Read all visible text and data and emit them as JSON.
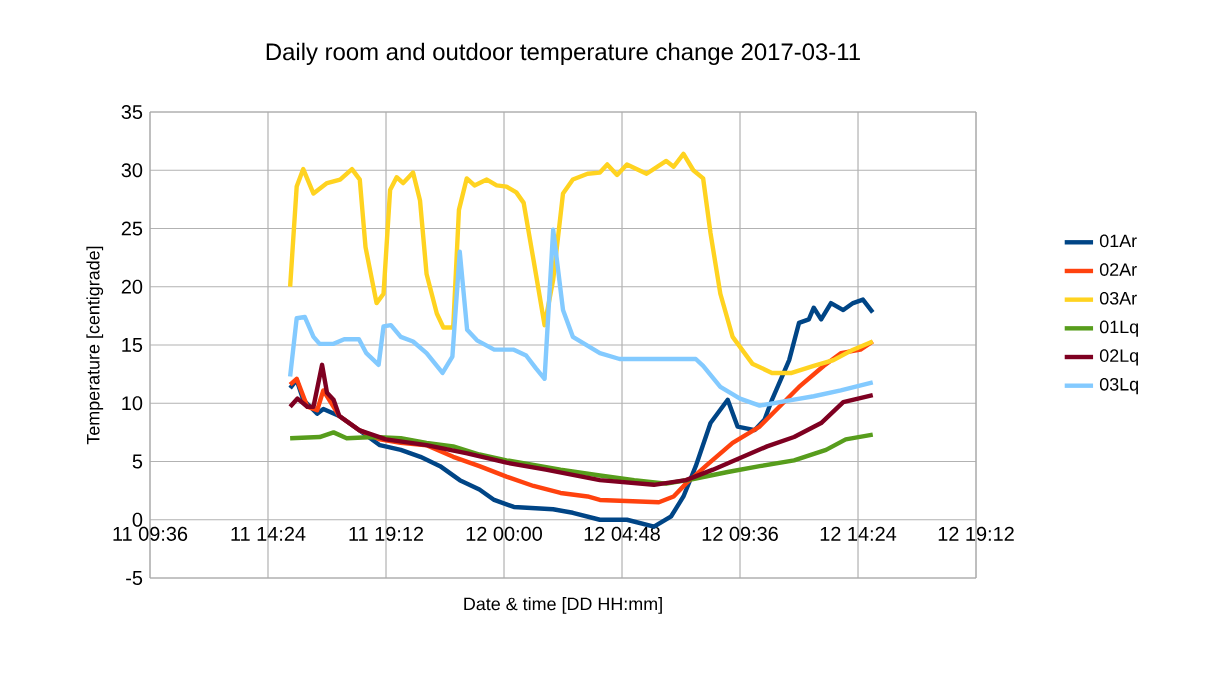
{
  "chart_data": {
    "type": "line",
    "title": "Daily room and outdoor temperature change 2017-03-11",
    "xlabel": "Date & time [DD HH:mm]",
    "ylabel": "Temperature [centigrade]",
    "xlim": [
      "2017-03-11T09:36",
      "2017-03-12T19:12"
    ],
    "xticks": [
      {
        "value": "2017-03-11T09:36",
        "label": "11 09:36"
      },
      {
        "value": "2017-03-11T14:24",
        "label": "11 14:24"
      },
      {
        "value": "2017-03-11T19:12",
        "label": "11 19:12"
      },
      {
        "value": "2017-03-12T00:00",
        "label": "12 00:00"
      },
      {
        "value": "2017-03-12T04:48",
        "label": "12 04:48"
      },
      {
        "value": "2017-03-12T09:36",
        "label": "12 09:36"
      },
      {
        "value": "2017-03-12T14:24",
        "label": "12 14:24"
      },
      {
        "value": "2017-03-12T19:12",
        "label": "12 19:12"
      }
    ],
    "ylim": [
      -5,
      35
    ],
    "yticks": [
      -5,
      0,
      5,
      10,
      15,
      20,
      25,
      30,
      35
    ],
    "grid": true,
    "legend": "right",
    "marker": "none",
    "line_style": "solid",
    "series": [
      {
        "name": "01Ar",
        "color": "#004586",
        "x": [
          "2017-03-11T15:18",
          "2017-03-11T15:34",
          "2017-03-11T15:50",
          "2017-03-11T16:24",
          "2017-03-11T16:39",
          "2017-03-11T17:18",
          "2017-03-11T18:06",
          "2017-03-11T18:57",
          "2017-03-11T19:48",
          "2017-03-11T20:36",
          "2017-03-11T21:24",
          "2017-03-11T22:12",
          "2017-03-11T23:00",
          "2017-03-11T23:36",
          "2017-03-12T00:24",
          "2017-03-12T01:12",
          "2017-03-12T02:00",
          "2017-03-12T02:48",
          "2017-03-12T03:54",
          "2017-03-12T05:00",
          "2017-03-12T06:06",
          "2017-03-12T06:48",
          "2017-03-12T07:18",
          "2017-03-12T07:48",
          "2017-03-12T08:24",
          "2017-03-12T09:06",
          "2017-03-12T09:30",
          "2017-03-12T10:12",
          "2017-03-12T10:36",
          "2017-03-12T10:54",
          "2017-03-12T11:36",
          "2017-03-12T12:00",
          "2017-03-12T12:24",
          "2017-03-12T12:36",
          "2017-03-12T12:54",
          "2017-03-12T13:18",
          "2017-03-12T13:48",
          "2017-03-12T14:12",
          "2017-03-12T14:36",
          "2017-03-12T15:00"
        ],
        "values": [
          11.3,
          12.0,
          10.3,
          9.1,
          9.5,
          8.9,
          7.7,
          6.4,
          6.0,
          5.4,
          4.6,
          3.4,
          2.6,
          1.7,
          1.1,
          1.0,
          0.9,
          0.6,
          0.0,
          0.0,
          -0.6,
          0.3,
          2.0,
          4.6,
          8.3,
          10.3,
          8.0,
          7.7,
          8.6,
          10.3,
          13.7,
          16.9,
          17.2,
          18.2,
          17.2,
          18.6,
          18.0,
          18.6,
          18.9,
          17.8
        ]
      },
      {
        "name": "02Ar",
        "color": "#ff420e",
        "x": [
          "2017-03-11T15:18",
          "2017-03-11T15:34",
          "2017-03-11T16:00",
          "2017-03-11T16:24",
          "2017-03-11T16:39",
          "2017-03-11T17:04",
          "2017-03-11T17:18",
          "2017-03-11T18:06",
          "2017-03-11T18:57",
          "2017-03-11T19:48",
          "2017-03-11T20:51",
          "2017-03-11T21:56",
          "2017-03-11T23:00",
          "2017-03-12T00:06",
          "2017-03-12T01:12",
          "2017-03-12T02:18",
          "2017-03-12T03:24",
          "2017-03-12T03:54",
          "2017-03-12T06:18",
          "2017-03-12T06:54",
          "2017-03-12T07:24",
          "2017-03-12T08:12",
          "2017-03-12T09:18",
          "2017-03-12T10:24",
          "2017-03-12T11:12",
          "2017-03-12T12:00",
          "2017-03-12T13:00",
          "2017-03-12T13:42",
          "2017-03-12T14:30",
          "2017-03-12T15:00"
        ],
        "values": [
          11.6,
          12.1,
          9.7,
          9.4,
          11.1,
          9.7,
          8.9,
          7.7,
          6.9,
          6.6,
          6.4,
          5.4,
          4.6,
          3.7,
          2.9,
          2.3,
          2.0,
          1.7,
          1.5,
          2.0,
          3.1,
          4.6,
          6.6,
          8.0,
          9.7,
          11.4,
          13.2,
          14.3,
          14.6,
          15.3
        ]
      },
      {
        "name": "03Ar",
        "color": "#ffd320",
        "x": [
          "2017-03-11T15:18",
          "2017-03-11T15:34",
          "2017-03-11T15:50",
          "2017-03-11T16:15",
          "2017-03-11T16:48",
          "2017-03-11T17:20",
          "2017-03-11T17:49",
          "2017-03-11T18:08",
          "2017-03-11T18:22",
          "2017-03-11T18:49",
          "2017-03-11T19:06",
          "2017-03-11T19:22",
          "2017-03-11T19:38",
          "2017-03-11T19:54",
          "2017-03-11T20:18",
          "2017-03-11T20:35",
          "2017-03-11T20:51",
          "2017-03-11T21:16",
          "2017-03-11T21:32",
          "2017-03-11T21:56",
          "2017-03-11T22:10",
          "2017-03-11T22:29",
          "2017-03-11T22:48",
          "2017-03-11T23:18",
          "2017-03-11T23:42",
          "2017-03-12T00:06",
          "2017-03-12T00:30",
          "2017-03-12T00:48",
          "2017-03-12T01:12",
          "2017-03-12T01:39",
          "2017-03-12T02:00",
          "2017-03-12T02:24",
          "2017-03-12T02:48",
          "2017-03-12T03:24",
          "2017-03-12T03:54",
          "2017-03-12T04:12",
          "2017-03-12T04:36",
          "2017-03-12T05:00",
          "2017-03-12T05:48",
          "2017-03-12T06:36",
          "2017-03-12T06:54",
          "2017-03-12T07:18",
          "2017-03-12T07:42",
          "2017-03-12T08:06",
          "2017-03-12T08:24",
          "2017-03-12T08:48",
          "2017-03-12T09:18",
          "2017-03-12T10:06",
          "2017-03-12T10:54",
          "2017-03-12T11:42",
          "2017-03-12T12:36",
          "2017-03-12T13:24",
          "2017-03-12T14:12",
          "2017-03-12T15:00"
        ],
        "values": [
          20.0,
          28.6,
          30.1,
          28.0,
          28.9,
          29.2,
          30.1,
          29.2,
          23.4,
          18.6,
          19.4,
          28.3,
          29.4,
          28.9,
          29.8,
          27.4,
          21.1,
          17.7,
          16.5,
          16.5,
          26.6,
          29.3,
          28.7,
          29.2,
          28.7,
          28.6,
          28.1,
          27.2,
          22.3,
          16.7,
          20.6,
          28.0,
          29.2,
          29.7,
          29.8,
          30.5,
          29.6,
          30.5,
          29.7,
          30.8,
          30.3,
          31.4,
          30.0,
          29.3,
          24.6,
          19.4,
          15.7,
          13.4,
          12.6,
          12.6,
          13.2,
          13.7,
          14.6,
          15.3
        ]
      },
      {
        "name": "01Lq",
        "color": "#579d1c",
        "x": [
          "2017-03-11T15:18",
          "2017-03-11T16:30",
          "2017-03-11T17:04",
          "2017-03-11T17:36",
          "2017-03-11T18:42",
          "2017-03-11T19:48",
          "2017-03-11T20:51",
          "2017-03-11T21:56",
          "2017-03-11T23:00",
          "2017-03-12T00:06",
          "2017-03-12T01:12",
          "2017-03-12T02:18",
          "2017-03-12T03:54",
          "2017-03-12T05:18",
          "2017-03-12T06:36",
          "2017-03-12T07:42",
          "2017-03-12T09:06",
          "2017-03-12T10:24",
          "2017-03-12T11:48",
          "2017-03-12T13:06",
          "2017-03-12T13:54",
          "2017-03-12T15:00"
        ],
        "values": [
          7.0,
          7.1,
          7.5,
          7.0,
          7.1,
          7.0,
          6.6,
          6.3,
          5.6,
          5.1,
          4.7,
          4.3,
          3.8,
          3.4,
          3.1,
          3.5,
          4.1,
          4.6,
          5.1,
          6.0,
          6.9,
          7.3
        ]
      },
      {
        "name": "02Lq",
        "color": "#7e0021",
        "x": [
          "2017-03-11T15:18",
          "2017-03-11T15:36",
          "2017-03-11T16:00",
          "2017-03-11T16:15",
          "2017-03-11T16:36",
          "2017-03-11T16:48",
          "2017-03-11T17:04",
          "2017-03-11T17:18",
          "2017-03-11T18:06",
          "2017-03-11T19:12",
          "2017-03-11T20:51",
          "2017-03-11T22:30",
          "2017-03-12T00:06",
          "2017-03-12T01:42",
          "2017-03-12T03:54",
          "2017-03-12T06:06",
          "2017-03-12T07:24",
          "2017-03-12T08:30",
          "2017-03-12T09:36",
          "2017-03-12T10:42",
          "2017-03-12T11:48",
          "2017-03-12T12:54",
          "2017-03-12T13:48",
          "2017-03-12T15:00"
        ],
        "values": [
          9.7,
          10.4,
          9.7,
          9.7,
          13.3,
          10.9,
          10.3,
          8.9,
          7.7,
          6.9,
          6.4,
          5.7,
          4.9,
          4.3,
          3.4,
          3.0,
          3.4,
          4.3,
          5.3,
          6.3,
          7.1,
          8.3,
          10.1,
          10.7
        ]
      },
      {
        "name": "03Lq",
        "color": "#83caff",
        "x": [
          "2017-03-11T15:18",
          "2017-03-11T15:34",
          "2017-03-11T15:54",
          "2017-03-11T16:15",
          "2017-03-11T16:30",
          "2017-03-11T17:04",
          "2017-03-11T17:30",
          "2017-03-11T18:06",
          "2017-03-11T18:24",
          "2017-03-11T18:54",
          "2017-03-11T19:06",
          "2017-03-11T19:24",
          "2017-03-11T19:48",
          "2017-03-11T20:18",
          "2017-03-11T20:51",
          "2017-03-11T21:30",
          "2017-03-11T21:54",
          "2017-03-11T22:12",
          "2017-03-11T22:30",
          "2017-03-11T22:54",
          "2017-03-11T23:36",
          "2017-03-12T00:24",
          "2017-03-12T00:54",
          "2017-03-12T01:18",
          "2017-03-12T01:39",
          "2017-03-12T02:00",
          "2017-03-12T02:24",
          "2017-03-12T02:48",
          "2017-03-12T03:54",
          "2017-03-12T04:42",
          "2017-03-12T06:06",
          "2017-03-12T07:48",
          "2017-03-12T08:06",
          "2017-03-12T08:48",
          "2017-03-12T09:36",
          "2017-03-12T10:24",
          "2017-03-12T11:30",
          "2017-03-12T12:36",
          "2017-03-12T13:42",
          "2017-03-12T15:00"
        ],
        "values": [
          12.3,
          17.3,
          17.4,
          15.7,
          15.1,
          15.1,
          15.5,
          15.5,
          14.3,
          13.3,
          16.6,
          16.7,
          15.7,
          15.3,
          14.3,
          12.6,
          14.0,
          23.0,
          16.3,
          15.4,
          14.6,
          14.6,
          14.1,
          13.0,
          12.1,
          24.9,
          18.0,
          15.7,
          14.3,
          13.8,
          13.8,
          13.8,
          13.2,
          11.4,
          10.4,
          9.8,
          10.2,
          10.6,
          11.1,
          11.8
        ]
      }
    ]
  }
}
